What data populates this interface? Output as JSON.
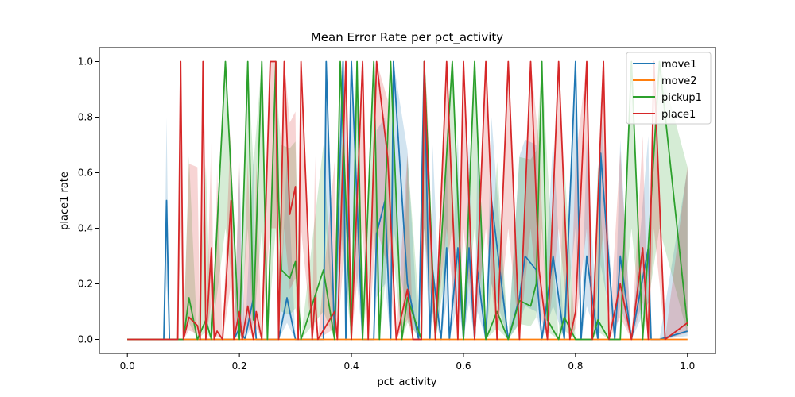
{
  "chart_data": {
    "type": "line",
    "title": "Mean Error Rate per pct_activity",
    "xlabel": "pct_activity",
    "ylabel": "place1 rate",
    "xlim": [
      -0.05,
      1.05
    ],
    "ylim": [
      -0.05,
      1.05
    ],
    "xticks": [
      0.0,
      0.2,
      0.4,
      0.6,
      0.8,
      1.0
    ],
    "xtick_labels": [
      "0.0",
      "0.2",
      "0.4",
      "0.6",
      "0.8",
      "1.0"
    ],
    "yticks": [
      0.0,
      0.2,
      0.4,
      0.6,
      0.8,
      1.0
    ],
    "ytick_labels": [
      "0.0",
      "0.2",
      "0.4",
      "0.6",
      "0.8",
      "1.0"
    ],
    "grid": false,
    "legend_position": "top-right",
    "series": [
      {
        "name": "move1",
        "color": "#1f77b4",
        "x": [
          0.0,
          0.065,
          0.07,
          0.075,
          0.1,
          0.12,
          0.19,
          0.2,
          0.21,
          0.225,
          0.23,
          0.27,
          0.285,
          0.3,
          0.35,
          0.355,
          0.37,
          0.385,
          0.39,
          0.4,
          0.42,
          0.44,
          0.445,
          0.46,
          0.47,
          0.475,
          0.5,
          0.52,
          0.53,
          0.54,
          0.545,
          0.56,
          0.57,
          0.575,
          0.59,
          0.6,
          0.61,
          0.62,
          0.625,
          0.64,
          0.65,
          0.68,
          0.7,
          0.71,
          0.73,
          0.74,
          0.76,
          0.78,
          0.8,
          0.81,
          0.82,
          0.84,
          0.845,
          0.87,
          0.88,
          0.9,
          0.93,
          0.935,
          0.95,
          1.0
        ],
        "y": [
          0.0,
          0.0,
          0.5,
          0.0,
          0.0,
          0.0,
          0.0,
          0.04,
          0.0,
          0.15,
          0.0,
          0.0,
          0.15,
          0.0,
          0.0,
          1.0,
          0.0,
          1.0,
          0.0,
          1.0,
          0.0,
          0.0,
          0.38,
          0.5,
          0.0,
          1.0,
          0.2,
          0.0,
          1.0,
          0.0,
          0.25,
          0.0,
          0.33,
          0.0,
          0.33,
          0.0,
          0.33,
          0.0,
          0.25,
          0.0,
          0.5,
          0.0,
          0.15,
          0.3,
          0.25,
          0.0,
          0.3,
          0.0,
          1.0,
          0.0,
          0.3,
          0.0,
          0.67,
          0.0,
          0.3,
          0.0,
          0.33,
          0.0,
          0.0,
          0.03
        ]
      },
      {
        "name": "move2",
        "color": "#ff7f0e",
        "x": [
          0.0,
          1.0
        ],
        "y": [
          0.0,
          0.0
        ]
      },
      {
        "name": "pickup1",
        "color": "#2ca02c",
        "x": [
          0.0,
          0.1,
          0.11,
          0.125,
          0.14,
          0.15,
          0.175,
          0.2,
          0.215,
          0.225,
          0.24,
          0.25,
          0.265,
          0.27,
          0.275,
          0.29,
          0.3,
          0.31,
          0.35,
          0.37,
          0.38,
          0.4,
          0.41,
          0.42,
          0.44,
          0.45,
          0.47,
          0.49,
          0.5,
          0.525,
          0.53,
          0.55,
          0.58,
          0.6,
          0.62,
          0.64,
          0.66,
          0.68,
          0.7,
          0.72,
          0.73,
          0.74,
          0.75,
          0.77,
          0.78,
          0.8,
          0.83,
          0.84,
          0.86,
          0.88,
          0.9,
          0.92,
          0.95,
          1.0
        ],
        "y": [
          0.0,
          0.0,
          0.15,
          0.0,
          0.07,
          0.0,
          1.0,
          0.0,
          1.0,
          0.07,
          1.0,
          0.0,
          1.0,
          0.5,
          0.25,
          0.22,
          0.28,
          0.0,
          0.25,
          0.0,
          1.0,
          0.0,
          1.0,
          0.0,
          1.0,
          0.0,
          1.0,
          0.0,
          0.15,
          0.0,
          1.0,
          0.0,
          1.0,
          0.0,
          1.0,
          0.0,
          0.1,
          0.0,
          0.14,
          0.12,
          0.2,
          1.0,
          0.07,
          0.0,
          0.08,
          0.0,
          0.0,
          0.07,
          0.0,
          0.0,
          1.0,
          0.0,
          1.0,
          0.05
        ]
      },
      {
        "name": "place1",
        "color": "#d62728",
        "x": [
          0.0,
          0.09,
          0.095,
          0.1,
          0.11,
          0.125,
          0.13,
          0.135,
          0.14,
          0.15,
          0.155,
          0.16,
          0.17,
          0.185,
          0.19,
          0.2,
          0.205,
          0.215,
          0.225,
          0.23,
          0.24,
          0.255,
          0.265,
          0.27,
          0.28,
          0.29,
          0.3,
          0.305,
          0.31,
          0.33,
          0.335,
          0.34,
          0.37,
          0.375,
          0.39,
          0.4,
          0.42,
          0.43,
          0.445,
          0.465,
          0.48,
          0.5,
          0.51,
          0.525,
          0.53,
          0.535,
          0.55,
          0.57,
          0.59,
          0.6,
          0.62,
          0.64,
          0.66,
          0.68,
          0.7,
          0.72,
          0.735,
          0.75,
          0.77,
          0.79,
          0.8,
          0.82,
          0.83,
          0.85,
          0.86,
          0.88,
          0.9,
          0.92,
          0.93,
          0.94,
          0.96,
          1.0
        ],
        "y": [
          0.0,
          0.0,
          1.0,
          0.0,
          0.08,
          0.05,
          0.0,
          1.0,
          0.0,
          0.33,
          0.0,
          0.03,
          0.0,
          0.5,
          0.0,
          0.1,
          0.0,
          0.12,
          0.0,
          0.1,
          0.0,
          1.0,
          1.0,
          0.0,
          1.0,
          0.45,
          0.55,
          0.0,
          1.0,
          0.0,
          0.15,
          0.0,
          0.1,
          0.0,
          1.0,
          0.0,
          1.0,
          0.0,
          1.0,
          0.65,
          0.0,
          0.18,
          0.0,
          0.0,
          1.0,
          0.67,
          0.0,
          1.0,
          0.0,
          1.0,
          0.0,
          1.0,
          0.0,
          1.0,
          0.0,
          1.0,
          0.25,
          0.0,
          1.0,
          0.0,
          0.1,
          1.0,
          0.0,
          1.0,
          0.0,
          0.2,
          0.0,
          0.33,
          0.0,
          1.0,
          0.0,
          0.06
        ]
      }
    ]
  }
}
